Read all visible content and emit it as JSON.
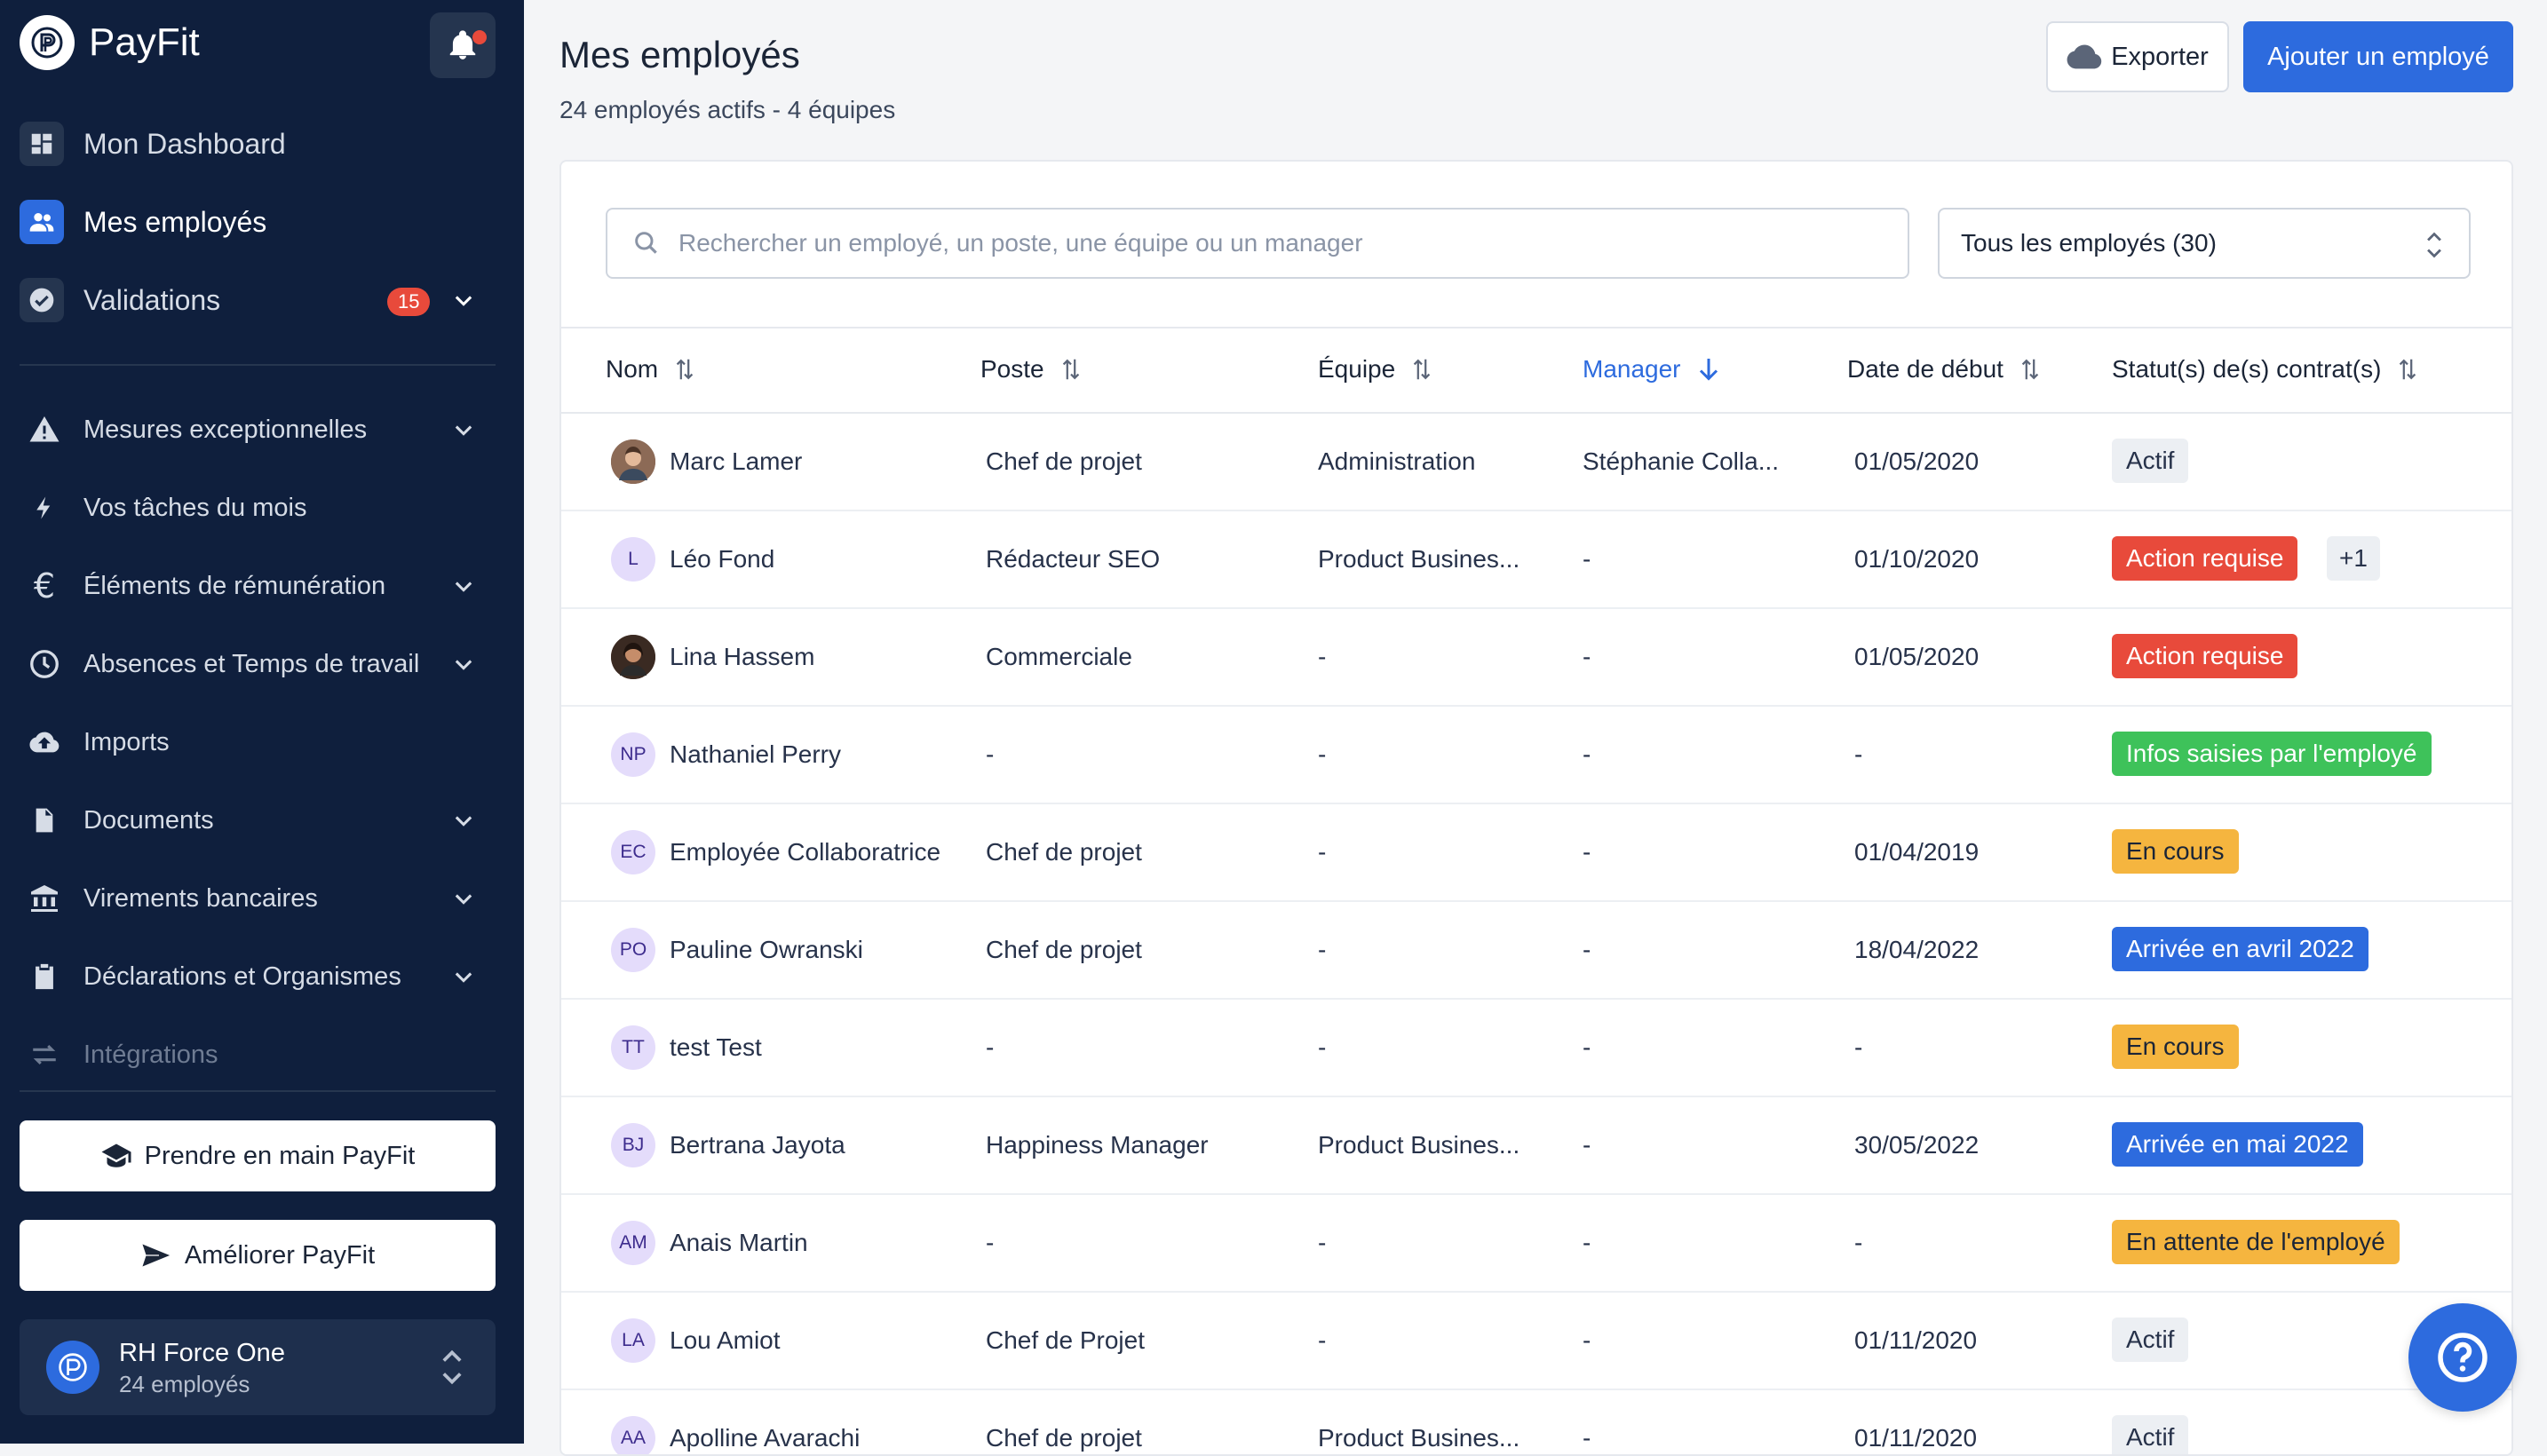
{
  "app": {
    "name": "PayFit"
  },
  "sidebar": {
    "primary": [
      {
        "label": "Mon Dashboard",
        "icon": "dashboard-icon"
      },
      {
        "label": "Mes employés",
        "icon": "people-icon"
      },
      {
        "label": "Validations",
        "icon": "check-circle-icon",
        "badge": "15"
      }
    ],
    "sections": [
      {
        "label": "Mesures exceptionnelles",
        "icon": "warning-icon"
      },
      {
        "label": "Vos tâches du mois",
        "icon": "bolt-icon"
      },
      {
        "label": "Éléments de rémunération",
        "icon": "euro-icon"
      },
      {
        "label": "Absences et Temps de travail",
        "icon": "clock-icon"
      },
      {
        "label": "Imports",
        "icon": "cloud-upload-icon"
      },
      {
        "label": "Documents",
        "icon": "document-icon"
      },
      {
        "label": "Virements bancaires",
        "icon": "bank-icon"
      },
      {
        "label": "Déclarations et Organismes",
        "icon": "clipboard-icon"
      },
      {
        "label": "Intégrations",
        "icon": "swap-icon"
      }
    ],
    "onboarding_button": "Prendre en main PayFit",
    "improve_button": "Améliorer PayFit",
    "company": {
      "name": "RH Force One",
      "sub": "24 employés"
    }
  },
  "header": {
    "title": "Mes employés",
    "subtitle": "24 employés actifs - 4 équipes",
    "export_label": "Exporter",
    "add_label": "Ajouter un employé"
  },
  "search": {
    "placeholder": "Rechercher un employé, un poste, une équipe ou un manager"
  },
  "filter": {
    "value": "Tous les employés (30)"
  },
  "table": {
    "columns": [
      "Nom",
      "Poste",
      "Équipe",
      "Manager",
      "Date de début",
      "Statut(s) de(s) contrat(s)"
    ],
    "rows": [
      {
        "initials": "",
        "name": "Marc Lamer",
        "poste": "Chef de projet",
        "equipe": "Administration",
        "manager": "Stéphanie Colla...",
        "date": "01/05/2020",
        "status": "Actif",
        "extra": ""
      },
      {
        "initials": "L",
        "name": "Léo Fond",
        "poste": "Rédacteur SEO",
        "equipe": "Product Busines...",
        "manager": "-",
        "date": "01/10/2020",
        "status": "Action requise",
        "extra": "+1"
      },
      {
        "initials": "",
        "name": "Lina Hassem",
        "poste": "Commerciale",
        "equipe": "-",
        "manager": "-",
        "date": "01/05/2020",
        "status": "Action requise",
        "extra": ""
      },
      {
        "initials": "NP",
        "name": "Nathaniel Perry",
        "poste": "-",
        "equipe": "-",
        "manager": "-",
        "date": "-",
        "status": "Infos saisies par l'employé",
        "extra": ""
      },
      {
        "initials": "EC",
        "name": "Employée Collaboratrice",
        "poste": "Chef de projet",
        "equipe": "-",
        "manager": "-",
        "date": "01/04/2019",
        "status": "En cours",
        "extra": ""
      },
      {
        "initials": "PO",
        "name": "Pauline Owranski",
        "poste": "Chef de projet",
        "equipe": "-",
        "manager": "-",
        "date": "18/04/2022",
        "status": "Arrivée en avril 2022",
        "extra": ""
      },
      {
        "initials": "TT",
        "name": "test Test",
        "poste": "-",
        "equipe": "-",
        "manager": "-",
        "date": "-",
        "status": "En cours",
        "extra": ""
      },
      {
        "initials": "BJ",
        "name": "Bertrana Jayota",
        "poste": "Happiness Manager",
        "equipe": "Product Busines...",
        "manager": "-",
        "date": "30/05/2022",
        "status": "Arrivée en mai 2022",
        "extra": ""
      },
      {
        "initials": "AM",
        "name": "Anais Martin",
        "poste": "-",
        "equipe": "-",
        "manager": "-",
        "date": "-",
        "status": "En attente de l'employé",
        "extra": ""
      },
      {
        "initials": "LA",
        "name": "Lou Amiot",
        "poste": "Chef de Projet",
        "equipe": "-",
        "manager": "-",
        "date": "01/11/2020",
        "status": "Actif",
        "extra": ""
      },
      {
        "initials": "AA",
        "name": "Apolline Avarachi",
        "poste": "Chef de projet",
        "equipe": "Product Busines...",
        "manager": "-",
        "date": "01/11/2020",
        "status": "Actif",
        "extra": ""
      }
    ]
  },
  "colors": {
    "sidebar": "#0f1f3d",
    "accent": "#2d6bde",
    "danger": "#e84a3b",
    "success": "#3ec25a",
    "warning": "#f5b53f"
  }
}
